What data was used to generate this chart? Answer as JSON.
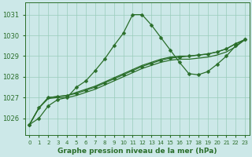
{
  "title": "Graphe pression niveau de la mer (hPa)",
  "ylabel_ticks": [
    1026,
    1027,
    1028,
    1029,
    1030,
    1031
  ],
  "xlim": [
    -0.5,
    23.5
  ],
  "ylim": [
    1025.2,
    1031.6
  ],
  "bg_color": "#cce8e8",
  "grid_color": "#99ccbb",
  "line_color": "#2a6e2a",
  "markersize": 2.5,
  "linewidth": 0.9,
  "x": [
    0,
    1,
    2,
    3,
    4,
    5,
    6,
    7,
    8,
    9,
    10,
    11,
    12,
    13,
    14,
    15,
    16,
    17,
    18,
    19,
    20,
    21,
    22,
    23
  ],
  "line_peak": [
    1025.7,
    1026.0,
    1026.6,
    1026.9,
    1027.0,
    1027.5,
    1027.8,
    1028.3,
    1028.85,
    1029.5,
    1030.1,
    1031.0,
    1031.0,
    1030.5,
    1029.9,
    1029.3,
    1028.7,
    1028.15,
    1028.1,
    1028.25,
    1028.6,
    1029.0,
    1029.5,
    1029.8
  ],
  "line_flat1": [
    1025.7,
    1026.5,
    1027.0,
    1027.05,
    1027.1,
    1027.2,
    1027.35,
    1027.5,
    1027.7,
    1027.9,
    1028.1,
    1028.3,
    1028.5,
    1028.65,
    1028.8,
    1028.9,
    1028.95,
    1029.0,
    1029.05,
    1029.1,
    1029.2,
    1029.35,
    1029.6,
    1029.8
  ],
  "line_flat2": [
    1025.7,
    1026.5,
    1027.0,
    1027.05,
    1027.1,
    1027.25,
    1027.4,
    1027.55,
    1027.75,
    1027.95,
    1028.15,
    1028.35,
    1028.55,
    1028.7,
    1028.85,
    1028.95,
    1029.0,
    1029.0,
    1029.05,
    1029.1,
    1029.2,
    1029.35,
    1029.6,
    1029.8
  ],
  "line_flat3": [
    1025.7,
    1026.5,
    1026.95,
    1027.0,
    1027.0,
    1027.1,
    1027.25,
    1027.4,
    1027.6,
    1027.8,
    1028.0,
    1028.2,
    1028.4,
    1028.55,
    1028.7,
    1028.8,
    1028.85,
    1028.85,
    1028.9,
    1028.95,
    1029.05,
    1029.2,
    1029.45,
    1029.8
  ],
  "xticks": [
    0,
    1,
    2,
    3,
    4,
    5,
    6,
    7,
    8,
    9,
    10,
    11,
    12,
    13,
    14,
    15,
    16,
    17,
    18,
    19,
    20,
    21,
    22,
    23
  ]
}
